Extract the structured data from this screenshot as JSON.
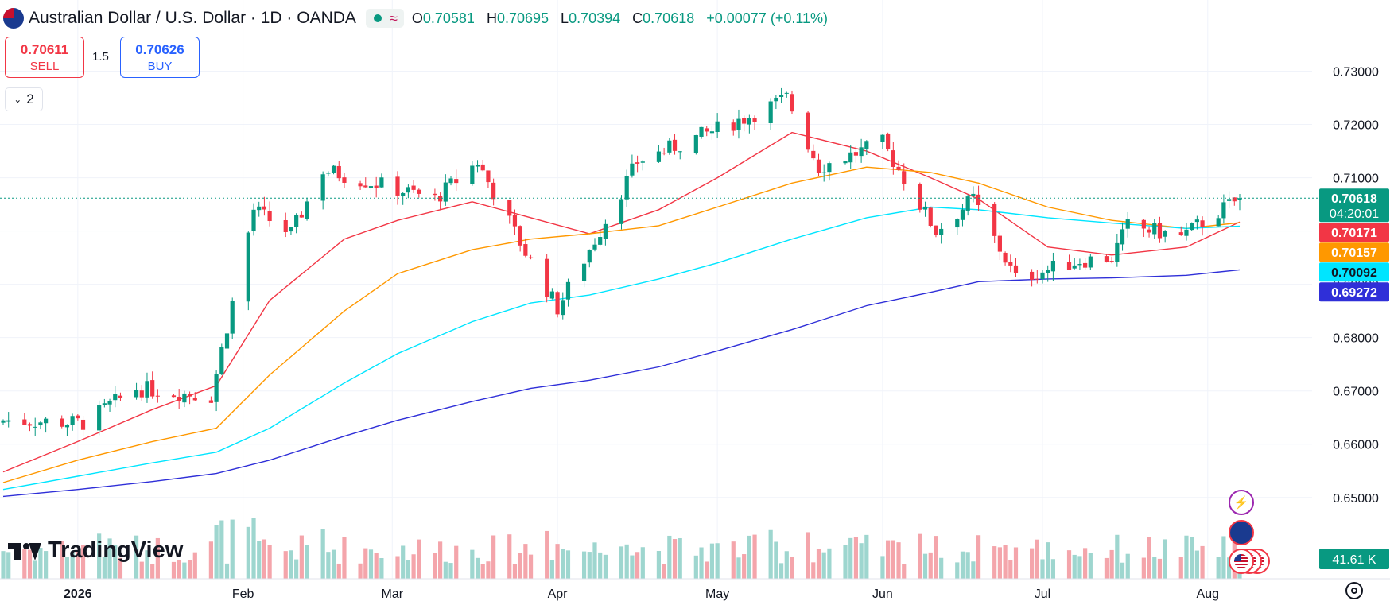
{
  "header": {
    "title": "Australian Dollar / U.S. Dollar · 1D · OANDA",
    "status_icon": "market-open-dot",
    "wave_icon": "≈",
    "ohlc": {
      "o_label": "O",
      "o_value": "0.70581",
      "h_label": "H",
      "h_value": "0.70695",
      "l_label": "L",
      "l_value": "0.70394",
      "c_label": "C",
      "c_value": "0.70618",
      "change": "+0.00077 (+0.11%)"
    }
  },
  "trade": {
    "sell_price": "0.70611",
    "sell_label": "SELL",
    "spread": "1.5",
    "buy_price": "0.70626",
    "buy_label": "BUY"
  },
  "indicators_toggle": {
    "count": "2"
  },
  "branding": {
    "logo_text": "TradingView"
  },
  "colors": {
    "up": "#089981",
    "down": "#f23645",
    "up_vol": "#9ed6cf",
    "down_vol": "#f4a5ab",
    "ma_fast": "#f23645",
    "ma_mid": "#ff9800",
    "ma_slow": "#00e5ff",
    "ma_long": "#2f2fd8",
    "grid": "#f0f3fa",
    "text": "#131722"
  },
  "chart_data": {
    "type": "candlestick",
    "symbol": "Australian Dollar / U.S. Dollar · 1D · OANDA",
    "y_ticks": [
      "0.73000",
      "0.72000",
      "0.71000",
      "0.70000",
      "0.69000",
      "0.68000",
      "0.67000",
      "0.66000",
      "0.65000"
    ],
    "x_ticks": [
      "2026",
      "Feb",
      "Mar",
      "Apr",
      "May",
      "Jun",
      "Jul",
      "Aug"
    ],
    "ylim": [
      0.6437,
      0.7353
    ],
    "price_labels": [
      {
        "text": "0.70618",
        "sub": "04:20:01",
        "value": 0.70618,
        "color": "#089981"
      },
      {
        "text": "0.70171",
        "value": 0.70171,
        "color": "#f23645"
      },
      {
        "text": "0.70157",
        "value": 0.70157,
        "color": "#ff9800"
      },
      {
        "text": "0.70092",
        "value": 0.70092,
        "color": "#00e5ff"
      },
      {
        "text": "0.69272",
        "value": 0.69272,
        "color": "#2f2fd8"
      }
    ],
    "volume_label": "41.61 K",
    "grid": true,
    "last_close": 0.70618,
    "segments": [
      {
        "from": "2025-12-18",
        "to": "2026-01-02",
        "start": 0.6645,
        "end": 0.664
      },
      {
        "from": "2026-01-02",
        "to": "2026-01-12",
        "start": 0.664,
        "end": 0.6705
      },
      {
        "from": "2026-01-12",
        "to": "2026-01-26",
        "start": 0.6705,
        "end": 0.669
      },
      {
        "from": "2026-01-26",
        "to": "2026-02-03",
        "start": 0.669,
        "end": 0.704
      },
      {
        "from": "2026-02-03",
        "to": "2026-02-10",
        "start": 0.704,
        "end": 0.6995
      },
      {
        "from": "2026-02-10",
        "to": "2026-02-16",
        "start": 0.6995,
        "end": 0.7115
      },
      {
        "from": "2026-02-16",
        "to": "2026-03-09",
        "start": 0.7115,
        "end": 0.706
      },
      {
        "from": "2026-03-09",
        "to": "2026-03-17",
        "start": 0.706,
        "end": 0.713
      },
      {
        "from": "2026-03-17",
        "to": "2026-03-26",
        "start": 0.713,
        "end": 0.696
      },
      {
        "from": "2026-03-26",
        "to": "2026-04-01",
        "start": 0.696,
        "end": 0.6855
      },
      {
        "from": "2026-04-01",
        "to": "2026-04-16",
        "start": 0.6855,
        "end": 0.713
      },
      {
        "from": "2026-04-16",
        "to": "2026-05-08",
        "start": 0.713,
        "end": 0.722
      },
      {
        "from": "2026-05-08",
        "to": "2026-05-14",
        "start": 0.722,
        "end": 0.725
      },
      {
        "from": "2026-05-14",
        "to": "2026-05-20",
        "start": 0.725,
        "end": 0.712
      },
      {
        "from": "2026-05-20",
        "to": "2026-06-01",
        "start": 0.712,
        "end": 0.7165
      },
      {
        "from": "2026-06-01",
        "to": "2026-06-11",
        "start": 0.7165,
        "end": 0.7
      },
      {
        "from": "2026-06-11",
        "to": "2026-06-18",
        "start": 0.7,
        "end": 0.706
      },
      {
        "from": "2026-06-18",
        "to": "2026-06-26",
        "start": 0.706,
        "end": 0.691
      },
      {
        "from": "2026-06-26",
        "to": "2026-07-08",
        "start": 0.691,
        "end": 0.6945
      },
      {
        "from": "2026-07-08",
        "to": "2026-07-14",
        "start": 0.6945,
        "end": 0.695
      },
      {
        "from": "2026-07-14",
        "to": "2026-07-17",
        "start": 0.695,
        "end": 0.701
      },
      {
        "from": "2026-07-17",
        "to": "2026-07-27",
        "start": 0.701,
        "end": 0.699
      },
      {
        "from": "2026-07-27",
        "to": "2026-08-07",
        "start": 0.699,
        "end": 0.7062
      }
    ],
    "moving_averages": [
      {
        "color": "#f23645",
        "points": [
          [
            "2025-12-18",
            0.6548
          ],
          [
            "2026-01-01",
            0.6605
          ],
          [
            "2026-01-15",
            0.6665
          ],
          [
            "2026-01-27",
            0.671
          ],
          [
            "2026-02-06",
            0.687
          ],
          [
            "2026-02-20",
            0.6985
          ],
          [
            "2026-03-02",
            0.702
          ],
          [
            "2026-03-16",
            0.7055
          ],
          [
            "2026-03-27",
            0.7025
          ],
          [
            "2026-04-07",
            0.6995
          ],
          [
            "2026-04-20",
            0.704
          ],
          [
            "2026-05-01",
            0.71
          ],
          [
            "2026-05-15",
            0.7185
          ],
          [
            "2026-05-29",
            0.715
          ],
          [
            "2026-06-10",
            0.71
          ],
          [
            "2026-06-19",
            0.706
          ],
          [
            "2026-07-02",
            0.697
          ],
          [
            "2026-07-14",
            0.6955
          ],
          [
            "2026-07-28",
            0.697
          ],
          [
            "2026-08-07",
            0.70171
          ]
        ]
      },
      {
        "color": "#ff9800",
        "points": [
          [
            "2025-12-18",
            0.6528
          ],
          [
            "2026-01-01",
            0.657
          ],
          [
            "2026-01-15",
            0.6605
          ],
          [
            "2026-01-27",
            0.663
          ],
          [
            "2026-02-06",
            0.673
          ],
          [
            "2026-02-20",
            0.685
          ],
          [
            "2026-03-02",
            0.692
          ],
          [
            "2026-03-16",
            0.6965
          ],
          [
            "2026-03-27",
            0.6985
          ],
          [
            "2026-04-07",
            0.6995
          ],
          [
            "2026-04-20",
            0.701
          ],
          [
            "2026-05-01",
            0.7045
          ],
          [
            "2026-05-15",
            0.709
          ],
          [
            "2026-05-29",
            0.712
          ],
          [
            "2026-06-10",
            0.711
          ],
          [
            "2026-06-19",
            0.709
          ],
          [
            "2026-07-02",
            0.7045
          ],
          [
            "2026-07-14",
            0.702
          ],
          [
            "2026-07-28",
            0.7005
          ],
          [
            "2026-08-07",
            0.70157
          ]
        ]
      },
      {
        "color": "#00e5ff",
        "points": [
          [
            "2025-12-18",
            0.6515
          ],
          [
            "2026-01-01",
            0.654
          ],
          [
            "2026-01-15",
            0.6565
          ],
          [
            "2026-01-27",
            0.6585
          ],
          [
            "2026-02-06",
            0.663
          ],
          [
            "2026-02-20",
            0.6715
          ],
          [
            "2026-03-02",
            0.677
          ],
          [
            "2026-03-16",
            0.683
          ],
          [
            "2026-03-27",
            0.6865
          ],
          [
            "2026-04-07",
            0.688
          ],
          [
            "2026-04-20",
            0.691
          ],
          [
            "2026-05-01",
            0.694
          ],
          [
            "2026-05-15",
            0.6985
          ],
          [
            "2026-05-29",
            0.7025
          ],
          [
            "2026-06-10",
            0.7045
          ],
          [
            "2026-06-19",
            0.704
          ],
          [
            "2026-07-02",
            0.7025
          ],
          [
            "2026-07-14",
            0.7015
          ],
          [
            "2026-07-28",
            0.7005
          ],
          [
            "2026-08-07",
            0.70092
          ]
        ]
      },
      {
        "color": "#2f2fd8",
        "points": [
          [
            "2025-12-18",
            0.6502
          ],
          [
            "2026-01-01",
            0.6515
          ],
          [
            "2026-01-15",
            0.653
          ],
          [
            "2026-01-27",
            0.6545
          ],
          [
            "2026-02-06",
            0.657
          ],
          [
            "2026-02-20",
            0.6615
          ],
          [
            "2026-03-02",
            0.6645
          ],
          [
            "2026-03-16",
            0.668
          ],
          [
            "2026-03-27",
            0.6705
          ],
          [
            "2026-04-07",
            0.672
          ],
          [
            "2026-04-20",
            0.6745
          ],
          [
            "2026-05-01",
            0.6775
          ],
          [
            "2026-05-15",
            0.6815
          ],
          [
            "2026-05-29",
            0.686
          ],
          [
            "2026-06-10",
            0.6885
          ],
          [
            "2026-06-19",
            0.6905
          ],
          [
            "2026-07-02",
            0.691
          ],
          [
            "2026-07-14",
            0.6912
          ],
          [
            "2026-07-28",
            0.6917
          ],
          [
            "2026-08-07",
            0.69272
          ]
        ]
      }
    ]
  }
}
